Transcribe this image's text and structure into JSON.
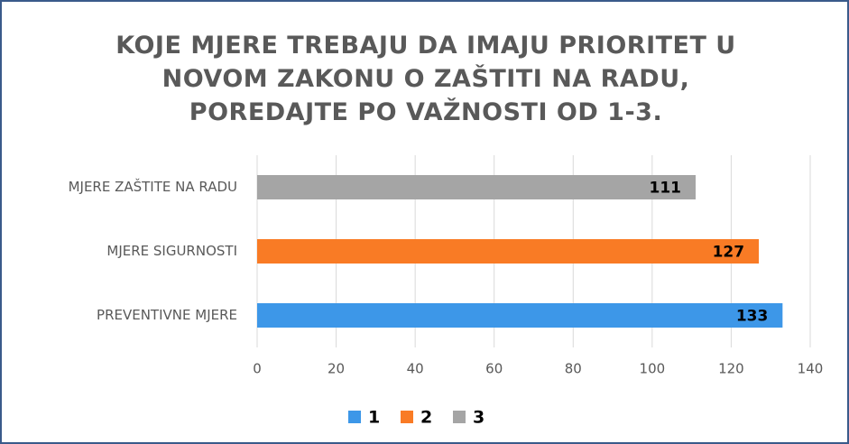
{
  "chart_data": {
    "type": "bar",
    "orientation": "horizontal",
    "title": "KOJE MJERE TREBAJU DA IMAJU PRIORITET U NOVOM ZAKONU O ZAŠTITI NA RADU, POREDAJTE PO VAŽNOSTI OD 1-3.",
    "categories": [
      "PREVENTIVNE MJERE",
      "MJERE SIGURNOSTI",
      "MJERE ZAŠTITE NA RADU"
    ],
    "series": [
      {
        "name": "1",
        "color": "#3d97e8",
        "values": [
          133,
          null,
          null
        ]
      },
      {
        "name": "2",
        "color": "#f97b25",
        "values": [
          null,
          127,
          null
        ]
      },
      {
        "name": "3",
        "color": "#a5a5a5",
        "values": [
          null,
          null,
          111
        ]
      }
    ],
    "xlim": [
      0,
      140
    ],
    "xticks": [
      0,
      20,
      40,
      60,
      80,
      100,
      120,
      140
    ],
    "grid": true,
    "legend": "bottom"
  }
}
